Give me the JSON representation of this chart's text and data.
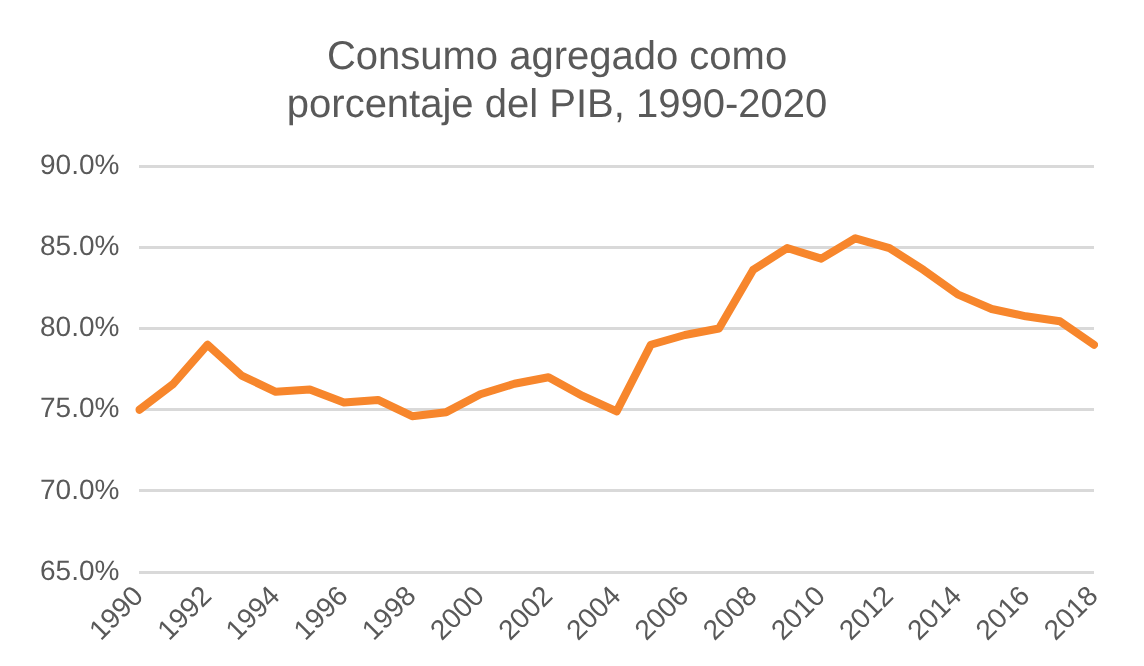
{
  "chart_data": {
    "type": "line",
    "title": "Consumo agregado como porcentaje del PIB, 1990-2020",
    "categories": [
      "1990",
      null,
      "1992",
      null,
      "1994",
      null,
      "1996",
      null,
      "1998",
      null,
      "2000",
      null,
      "2002",
      null,
      "2004",
      null,
      "2006",
      null,
      "2008",
      null,
      "2010",
      null,
      "2012",
      null,
      "2014",
      null,
      "2016",
      null,
      "2018"
    ],
    "series": [
      {
        "color": "#f7862c",
        "values": [
          75.0,
          76.6,
          79.0,
          77.1,
          76.1,
          76.25,
          75.45,
          75.6,
          74.6,
          74.85,
          75.95,
          76.6,
          77.0,
          75.85,
          74.9,
          79.0,
          79.6,
          80.0,
          83.6,
          84.95,
          84.3,
          85.55,
          84.95,
          83.6,
          82.1,
          81.2,
          80.75,
          80.45,
          79.0
        ]
      }
    ],
    "ylim": [
      65,
      90
    ],
    "yticks": [
      {
        "value": 65,
        "label": "65.0%"
      },
      {
        "value": 70,
        "label": "70.0%"
      },
      {
        "value": 75,
        "label": "75.0%"
      },
      {
        "value": 80,
        "label": "80.0%"
      },
      {
        "value": 85,
        "label": "85.0%"
      },
      {
        "value": 90,
        "label": "90.0%"
      }
    ],
    "grid": "y",
    "legend": false,
    "marker": "none",
    "line_style": "solid"
  }
}
